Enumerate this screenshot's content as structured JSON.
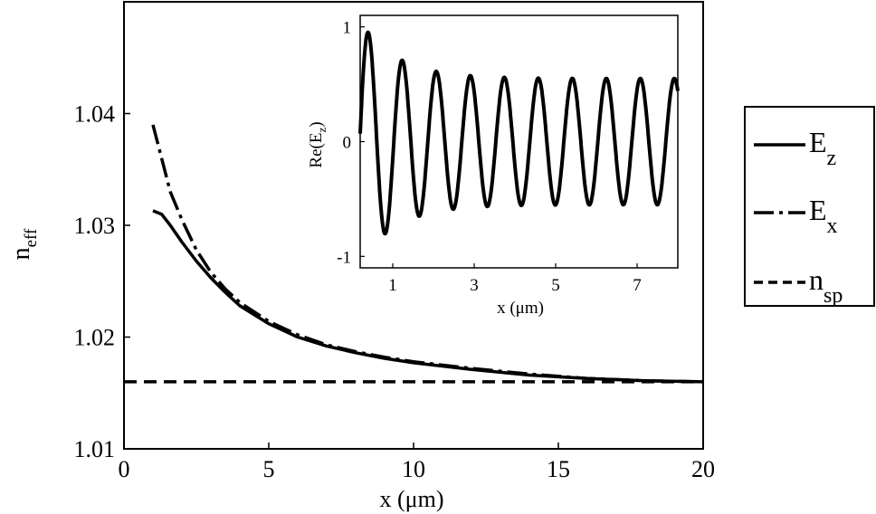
{
  "chart_data": [
    {
      "type": "line",
      "title": "",
      "xlabel": "x (μm)",
      "ylabel_main": "n",
      "ylabel_sub": "eff",
      "xlim": [
        0,
        20
      ],
      "ylim": [
        1.01,
        1.05
      ],
      "xticks": [
        0,
        5,
        10,
        15,
        20
      ],
      "xtick_labels": [
        "0",
        "5",
        "10",
        "15",
        "20"
      ],
      "yticks": [
        1.01,
        1.02,
        1.03,
        1.04
      ],
      "ytick_labels": [
        "1.01",
        "1.02",
        "1.03",
        "1.04"
      ],
      "grid": false,
      "legend_position": "outside-right",
      "series": [
        {
          "name": "E",
          "name_sub": "z",
          "style": "solid",
          "x": [
            1.0,
            1.3,
            1.6,
            2.0,
            2.5,
            3.0,
            3.5,
            4.0,
            5.0,
            6.0,
            7.0,
            8.0,
            9.0,
            10.0,
            12.0,
            14.0,
            16.0,
            18.0,
            20.0
          ],
          "y": [
            1.0313,
            1.031,
            1.03,
            1.0285,
            1.0268,
            1.0253,
            1.024,
            1.0228,
            1.0212,
            1.02,
            1.0192,
            1.0186,
            1.0181,
            1.0177,
            1.0171,
            1.0166,
            1.0163,
            1.0161,
            1.016
          ]
        },
        {
          "name": "E",
          "name_sub": "x",
          "style": "dashdot",
          "x": [
            1.0,
            1.3,
            1.6,
            2.0,
            2.5,
            3.0,
            3.5,
            4.0,
            5.0,
            6.0,
            7.0,
            8.0,
            9.0,
            10.0,
            12.0,
            14.0,
            16.0,
            18.0,
            20.0
          ],
          "y": [
            1.039,
            1.036,
            1.033,
            1.0305,
            1.0278,
            1.0258,
            1.0243,
            1.0231,
            1.0214,
            1.0202,
            1.0193,
            1.0187,
            1.0182,
            1.0178,
            1.0172,
            1.0167,
            1.0163,
            1.0161,
            1.016
          ]
        },
        {
          "name": "n",
          "name_sub": "sp",
          "style": "dashed",
          "x": [
            0.0,
            20.0
          ],
          "y": [
            1.016,
            1.016
          ]
        }
      ]
    },
    {
      "type": "line",
      "title": "",
      "xlabel": "x (μm)",
      "ylabel_main": "Re(E",
      "ylabel_sub": "z",
      "ylabel_end": ")",
      "xlim": [
        0.2,
        8.0
      ],
      "ylim": [
        -1.1,
        1.1
      ],
      "xticks": [
        1,
        3,
        5,
        7
      ],
      "xtick_labels": [
        "1",
        "3",
        "5",
        "7"
      ],
      "yticks": [
        -1,
        0,
        1
      ],
      "ytick_labels": [
        "-1",
        "0",
        "1"
      ],
      "grid": false,
      "series": [
        {
          "name": "",
          "style": "solid",
          "period": 0.835,
          "phase_x": 0.4,
          "amplitude_near": 1.05,
          "amplitude_far": 0.55,
          "x_start": 0.2,
          "x_end": 8.0
        }
      ]
    }
  ]
}
